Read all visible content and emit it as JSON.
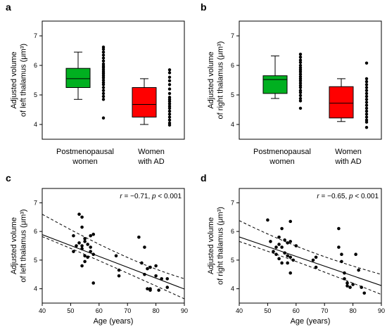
{
  "chart_data": [
    {
      "panel": "a",
      "type": "box",
      "ylabel_lines": [
        "Adjusted volume",
        "of left thalamus (μm³)"
      ],
      "yticks": [
        4,
        5,
        6,
        7
      ],
      "ylim": [
        3.5,
        7.5
      ],
      "categories": [
        {
          "lines": [
            "Postmenopausal",
            "women"
          ]
        },
        {
          "lines": [
            "Women",
            "with AD"
          ]
        }
      ],
      "boxes": [
        {
          "min": 4.85,
          "q1": 5.25,
          "median": 5.55,
          "q3": 5.9,
          "max": 6.45,
          "color": "#00b020",
          "points": [
            6.62,
            6.55,
            6.45,
            6.35,
            6.25,
            6.15,
            6.05,
            5.98,
            5.92,
            5.85,
            5.78,
            5.72,
            5.65,
            5.58,
            5.5,
            5.42,
            5.35,
            5.25,
            5.15,
            5.05,
            4.95,
            4.85,
            4.22
          ]
        },
        {
          "min": 4.0,
          "q1": 4.25,
          "median": 4.68,
          "q3": 5.25,
          "max": 5.55,
          "color": "#ff0000",
          "points": [
            5.85,
            5.75,
            5.6,
            5.48,
            5.35,
            5.2,
            5.05,
            4.92,
            4.85,
            4.78,
            4.7,
            4.62,
            4.55,
            4.45,
            4.35,
            4.25,
            4.15,
            4.05,
            3.98
          ]
        }
      ]
    },
    {
      "panel": "b",
      "type": "box",
      "ylabel_lines": [
        "Adjusted volume",
        "of right thalamus (μm³)"
      ],
      "yticks": [
        4,
        5,
        6,
        7
      ],
      "ylim": [
        3.5,
        7.5
      ],
      "categories": [
        {
          "lines": [
            "Postmenopausal",
            "women"
          ]
        },
        {
          "lines": [
            "Women",
            "with AD"
          ]
        }
      ],
      "boxes": [
        {
          "min": 4.88,
          "q1": 5.05,
          "median": 5.52,
          "q3": 5.65,
          "max": 6.32,
          "color": "#00b020",
          "points": [
            6.38,
            6.28,
            6.18,
            6.1,
            6.0,
            5.92,
            5.85,
            5.78,
            5.7,
            5.62,
            5.55,
            5.48,
            5.4,
            5.32,
            5.25,
            5.15,
            5.08,
            4.98,
            4.88,
            4.8,
            4.55
          ]
        },
        {
          "min": 4.1,
          "q1": 4.22,
          "median": 4.72,
          "q3": 5.28,
          "max": 5.55,
          "color": "#ff0000",
          "points": [
            6.08,
            5.55,
            5.45,
            5.35,
            5.25,
            5.15,
            5.05,
            4.95,
            4.85,
            4.75,
            4.65,
            4.55,
            4.45,
            4.35,
            4.25,
            4.15,
            4.08,
            3.9
          ]
        }
      ]
    },
    {
      "panel": "c",
      "type": "scatter",
      "xlabel": "Age (years)",
      "ylabel_lines": [
        "Adjusted volume",
        "of left thalamus (μm³)"
      ],
      "xticks": [
        40,
        50,
        60,
        70,
        80,
        90
      ],
      "yticks": [
        4,
        5,
        6,
        7
      ],
      "xlim": [
        40,
        90
      ],
      "ylim": [
        3.5,
        7.5
      ],
      "annotation": {
        "r_label": "r",
        "rest": " = −0.71, ",
        "p_label": "p",
        "p_rest": " < 0.001"
      },
      "fit": {
        "intercept": 7.41,
        "slope": -0.038
      },
      "ci_upper": [
        [
          40,
          6.6
        ],
        [
          60,
          5.5
        ],
        [
          75,
          4.8
        ],
        [
          90,
          4.35
        ]
      ],
      "ci_lower": [
        [
          40,
          5.82
        ],
        [
          53,
          5.3
        ],
        [
          70,
          4.55
        ],
        [
          90,
          3.65
        ]
      ],
      "points": [
        [
          51,
          5.85
        ],
        [
          51,
          5.3
        ],
        [
          52,
          5.5
        ],
        [
          53,
          6.6
        ],
        [
          53,
          5.6
        ],
        [
          54,
          6.5
        ],
        [
          54,
          6.15
        ],
        [
          54,
          5.5
        ],
        [
          54,
          5.4
        ],
        [
          55,
          5.75
        ],
        [
          55,
          5.65
        ],
        [
          55,
          5.15
        ],
        [
          55,
          4.95
        ],
        [
          54,
          4.8
        ],
        [
          56,
          5.55
        ],
        [
          57,
          5.85
        ],
        [
          57,
          5.45
        ],
        [
          57,
          5.3
        ],
        [
          58,
          5.9
        ],
        [
          58,
          5.2
        ],
        [
          58,
          4.2
        ],
        [
          56,
          5.1
        ],
        [
          66,
          5.15
        ],
        [
          67,
          4.65
        ],
        [
          67,
          4.45
        ],
        [
          74,
          5.8
        ],
        [
          75,
          4.9
        ],
        [
          76,
          5.45
        ],
        [
          76,
          4.5
        ],
        [
          77,
          4.7
        ],
        [
          77,
          4.0
        ],
        [
          78,
          4.75
        ],
        [
          78,
          4.0
        ],
        [
          78,
          3.95
        ],
        [
          80,
          4.8
        ],
        [
          80,
          4.45
        ],
        [
          81,
          3.95
        ],
        [
          82,
          4.35
        ],
        [
          84,
          4.35
        ],
        [
          84,
          4.05
        ]
      ]
    },
    {
      "panel": "d",
      "type": "scatter",
      "xlabel": "Age (years)",
      "ylabel_lines": [
        "Adjusted volume",
        "of right thalamus (μm³)"
      ],
      "xticks": [
        40,
        50,
        60,
        70,
        80,
        90
      ],
      "yticks": [
        4,
        5,
        6,
        7
      ],
      "xlim": [
        40,
        90
      ],
      "ylim": [
        3.5,
        7.5
      ],
      "annotation": {
        "r_label": "r",
        "rest": " = −0.65, ",
        "p_label": "p",
        "p_rest": " < 0.001"
      },
      "fit": {
        "intercept": 7.17,
        "slope": -0.034
      },
      "ci_upper": [
        [
          40,
          6.38
        ],
        [
          60,
          5.4
        ],
        [
          75,
          4.92
        ],
        [
          90,
          4.5
        ]
      ],
      "ci_lower": [
        [
          40,
          5.65
        ],
        [
          55,
          5.15
        ],
        [
          70,
          4.6
        ],
        [
          90,
          3.8
        ]
      ],
      "points": [
        [
          50,
          6.4
        ],
        [
          51,
          5.65
        ],
        [
          52,
          5.3
        ],
        [
          53,
          5.45
        ],
        [
          53,
          5.2
        ],
        [
          54,
          5.8
        ],
        [
          54,
          5.55
        ],
        [
          54,
          5.05
        ],
        [
          55,
          6.1
        ],
        [
          55,
          5.45
        ],
        [
          55,
          4.9
        ],
        [
          56,
          5.7
        ],
        [
          56,
          5.25
        ],
        [
          57,
          5.6
        ],
        [
          57,
          5.15
        ],
        [
          57,
          4.9
        ],
        [
          58,
          6.35
        ],
        [
          58,
          5.65
        ],
        [
          58,
          5.1
        ],
        [
          58,
          4.55
        ],
        [
          59,
          5.0
        ],
        [
          60,
          5.5
        ],
        [
          66,
          5.0
        ],
        [
          67,
          5.1
        ],
        [
          67,
          4.75
        ],
        [
          75,
          6.1
        ],
        [
          75,
          5.45
        ],
        [
          76,
          5.2
        ],
        [
          76,
          4.95
        ],
        [
          77,
          4.55
        ],
        [
          77,
          4.35
        ],
        [
          78,
          4.2
        ],
        [
          78,
          4.1
        ],
        [
          79,
          4.05
        ],
        [
          80,
          4.15
        ],
        [
          81,
          5.2
        ],
        [
          82,
          4.65
        ],
        [
          83,
          4.05
        ],
        [
          84,
          3.85
        ]
      ]
    }
  ]
}
